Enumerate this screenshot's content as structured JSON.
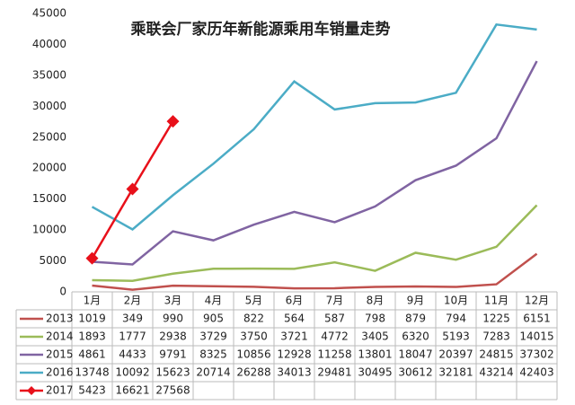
{
  "chart_data": {
    "type": "line",
    "title": "乘联会厂家历年新能源乘用车销量走势",
    "categories": [
      "1月",
      "2月",
      "3月",
      "4月",
      "5月",
      "6月",
      "7月",
      "8月",
      "9月",
      "10月",
      "11月",
      "12月"
    ],
    "series": [
      {
        "name": "2013",
        "color": "#c0504d",
        "values": [
          1019,
          349,
          990,
          905,
          822,
          564,
          587,
          798,
          879,
          794,
          1225,
          6151
        ]
      },
      {
        "name": "2014",
        "color": "#9bbb59",
        "values": [
          1893,
          1777,
          2938,
          3729,
          3750,
          3721,
          4772,
          3405,
          6320,
          5193,
          7283,
          14015
        ]
      },
      {
        "name": "2015",
        "color": "#8064a2",
        "values": [
          4861,
          4433,
          9791,
          8325,
          10856,
          12928,
          11258,
          13801,
          18047,
          20397,
          24815,
          37302
        ]
      },
      {
        "name": "2016",
        "color": "#4bacc6",
        "values": [
          13748,
          10092,
          15623,
          20714,
          26288,
          34013,
          29481,
          30495,
          30612,
          32181,
          43214,
          42403
        ]
      },
      {
        "name": "2017",
        "color": "#e8101a",
        "marker": "diamond",
        "values": [
          5423,
          16621,
          27568,
          null,
          null,
          null,
          null,
          null,
          null,
          null,
          null,
          null
        ]
      }
    ],
    "ylim": [
      0,
      45000
    ],
    "yticks": [
      0,
      5000,
      10000,
      15000,
      20000,
      25000,
      30000,
      35000,
      40000,
      45000
    ],
    "grid": false
  }
}
